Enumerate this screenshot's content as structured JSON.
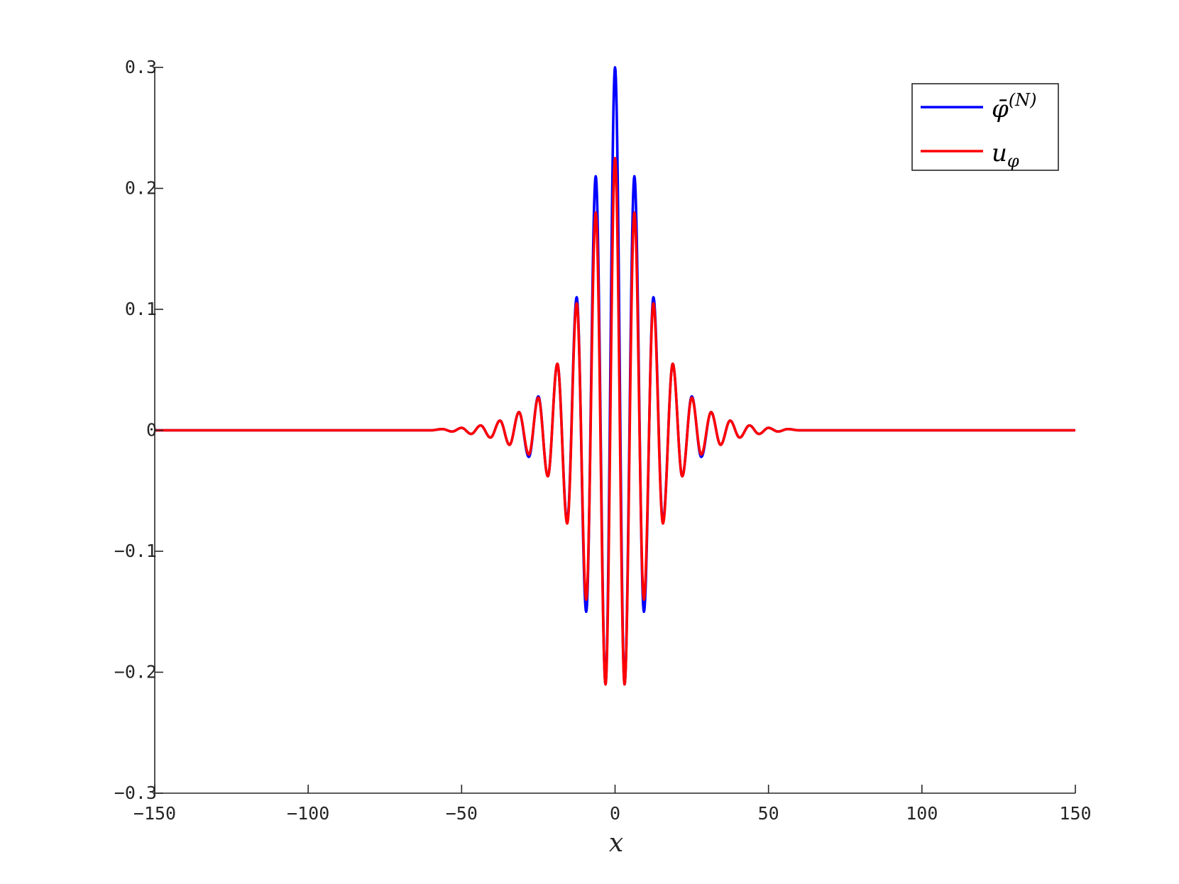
{
  "chart_data": {
    "type": "line",
    "title": "",
    "xlabel": "x",
    "ylabel": "",
    "xlim": [
      -150,
      150
    ],
    "ylim": [
      -0.3,
      0.3
    ],
    "xticks": [
      -150,
      -100,
      -50,
      0,
      50,
      100,
      150
    ],
    "xtick_labels": [
      "−150",
      "−100",
      "−50",
      "0",
      "50",
      "100",
      "150"
    ],
    "yticks": [
      -0.3,
      -0.2,
      -0.1,
      0,
      0.1,
      0.2,
      0.3
    ],
    "ytick_labels": [
      "−0.3",
      "−0.2",
      "−0.1",
      "0",
      "0.1",
      "0.2",
      "0.3"
    ],
    "grid": false,
    "legend_position": "top-right",
    "series": [
      {
        "name": "φ̄(N)",
        "legend_main": "φ̄",
        "legend_sup": "(N)",
        "color": "#0000ff",
        "x": [
          -150,
          -60,
          -56.3,
          -53.1,
          -50,
          -46.9,
          -43.8,
          -40.6,
          -37.5,
          -34.4,
          -31.3,
          -28.1,
          -25,
          -21.9,
          -18.8,
          -15.6,
          -12.5,
          -9.4,
          -6.3,
          -3.1,
          0,
          3.1,
          6.3,
          9.4,
          12.5,
          15.6,
          18.8,
          21.9,
          25,
          28.1,
          31.3,
          34.4,
          37.5,
          40.6,
          43.8,
          46.9,
          50,
          53.1,
          56.3,
          60,
          150
        ],
        "y": [
          0,
          0,
          0.001,
          -0.001,
          0.002,
          -0.003,
          0.004,
          -0.006,
          0.008,
          -0.012,
          0.015,
          -0.022,
          0.028,
          -0.038,
          0.055,
          -0.075,
          0.11,
          -0.15,
          0.21,
          -0.21,
          0.3,
          -0.21,
          0.21,
          -0.15,
          0.11,
          -0.075,
          0.055,
          -0.038,
          0.028,
          -0.022,
          0.015,
          -0.012,
          0.008,
          -0.006,
          0.004,
          -0.003,
          0.002,
          -0.001,
          0.001,
          0,
          0
        ]
      },
      {
        "name": "uφ",
        "legend_main": "u",
        "legend_sub": "φ",
        "color": "#ff0000",
        "x": [
          -150,
          -60,
          -56.3,
          -53.1,
          -50,
          -46.9,
          -43.8,
          -40.6,
          -37.5,
          -34.4,
          -31.3,
          -28.1,
          -25,
          -21.9,
          -18.8,
          -15.6,
          -12.5,
          -9.4,
          -6.3,
          -3.1,
          0,
          3.1,
          6.3,
          9.4,
          12.5,
          15.6,
          18.8,
          21.9,
          25,
          28.1,
          31.3,
          34.4,
          37.5,
          40.6,
          43.8,
          46.9,
          50,
          53.1,
          56.3,
          60,
          150
        ],
        "y": [
          0,
          0,
          0.001,
          -0.001,
          0.002,
          -0.003,
          0.004,
          -0.006,
          0.008,
          -0.012,
          0.015,
          -0.02,
          0.027,
          -0.038,
          0.055,
          -0.077,
          0.105,
          -0.14,
          0.18,
          -0.21,
          0.225,
          -0.21,
          0.18,
          -0.14,
          0.105,
          -0.077,
          0.055,
          -0.038,
          0.027,
          -0.02,
          0.015,
          -0.012,
          0.008,
          -0.006,
          0.004,
          -0.003,
          0.002,
          -0.001,
          0.001,
          0,
          0
        ]
      }
    ]
  }
}
